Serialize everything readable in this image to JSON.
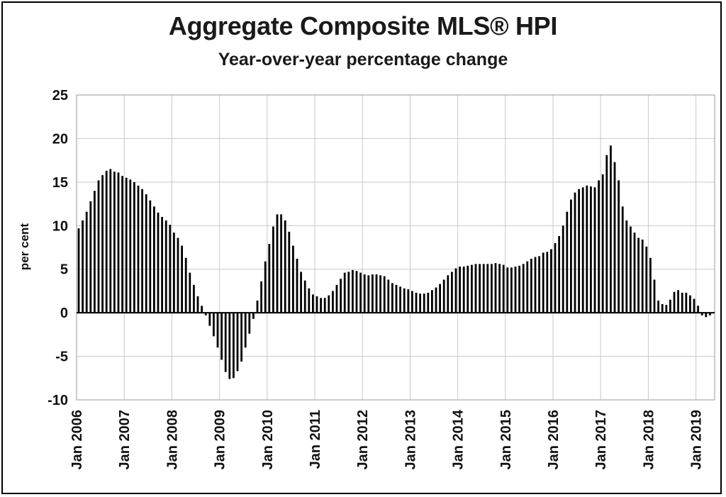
{
  "chart_data": {
    "type": "bar",
    "title": "Aggregate Composite MLS® HPI",
    "subtitle": "Year-over-year percentage change",
    "ylabel": "per cent",
    "xlabel": "",
    "ylim": [
      -10,
      25
    ],
    "y_ticks": [
      -10,
      -5,
      0,
      5,
      10,
      15,
      20,
      25
    ],
    "x_tick_labels": [
      "Jan 2006",
      "Jan 2007",
      "Jan 2008",
      "Jan 2009",
      "Jan 2010",
      "Jan 2011",
      "Jan 2012",
      "Jan 2013",
      "Jan 2014",
      "Jan 2015",
      "Jan 2016",
      "Jan 2017",
      "Jan 2018",
      "Jan 2019"
    ],
    "grid": true,
    "bar_color": "#000000",
    "start": "Jan 2006",
    "frequency": "monthly",
    "values": [
      9.7,
      10.6,
      11.6,
      12.8,
      14.0,
      15.2,
      15.8,
      16.3,
      16.5,
      16.2,
      16.1,
      15.7,
      15.5,
      15.3,
      15.0,
      14.6,
      14.2,
      13.6,
      12.9,
      12.2,
      11.5,
      11.0,
      10.6,
      10.1,
      9.2,
      8.6,
      7.7,
      6.3,
      4.6,
      3.2,
      1.9,
      0.8,
      -0.3,
      -1.5,
      -2.7,
      -4.0,
      -5.4,
      -6.8,
      -7.6,
      -7.5,
      -6.7,
      -5.6,
      -4.0,
      -2.4,
      -0.7,
      1.4,
      3.6,
      5.9,
      7.9,
      9.9,
      11.3,
      11.3,
      10.6,
      9.3,
      7.7,
      6.2,
      4.7,
      3.7,
      2.8,
      2.1,
      1.9,
      1.7,
      1.7,
      2.0,
      2.5,
      3.2,
      3.9,
      4.6,
      4.7,
      4.9,
      4.8,
      4.6,
      4.4,
      4.3,
      4.4,
      4.4,
      4.3,
      4.2,
      3.8,
      3.4,
      3.2,
      3.0,
      2.8,
      2.7,
      2.5,
      2.3,
      2.2,
      2.2,
      2.3,
      2.6,
      2.9,
      3.3,
      3.8,
      4.3,
      4.7,
      5.1,
      5.3,
      5.3,
      5.4,
      5.5,
      5.6,
      5.6,
      5.6,
      5.6,
      5.6,
      5.7,
      5.6,
      5.5,
      5.2,
      5.2,
      5.3,
      5.4,
      5.6,
      5.9,
      6.2,
      6.4,
      6.5,
      6.9,
      7.0,
      7.3,
      8.0,
      8.8,
      10.0,
      11.6,
      13.0,
      13.8,
      14.2,
      14.4,
      14.6,
      14.5,
      14.4,
      15.2,
      15.9,
      18.1,
      19.2,
      17.3,
      15.2,
      12.2,
      10.6,
      9.9,
      9.2,
      8.6,
      8.4,
      7.6,
      6.3,
      3.8,
      1.4,
      1.0,
      0.9,
      1.5,
      2.4,
      2.6,
      2.3,
      2.3,
      2.0,
      1.6,
      0.8,
      -0.3,
      -0.5,
      -0.3
    ]
  }
}
